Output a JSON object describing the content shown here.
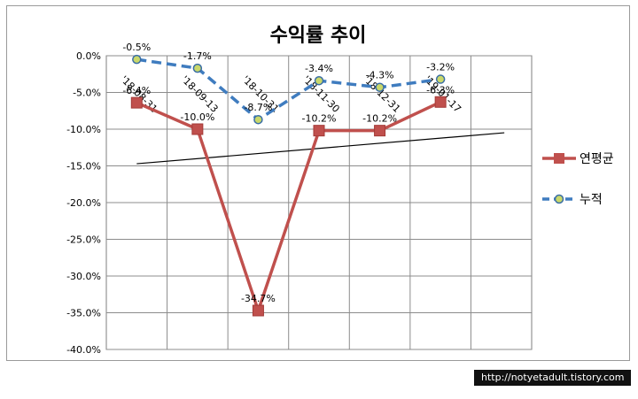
{
  "chart_data": {
    "type": "line",
    "title": "수익률 추이",
    "categories": [
      "'18-08-31",
      "'18-09-13",
      "'18-10-31",
      "'18-11-30",
      "'18-12-31",
      "'19-01-17"
    ],
    "ylim": [
      -40,
      0
    ],
    "yticks": [
      0,
      -5,
      -10,
      -15,
      -20,
      -25,
      -30,
      -35,
      -40
    ],
    "ytick_labels": [
      "0.0%",
      "-5.0%",
      "-10.0%",
      "-15.0%",
      "-20.0%",
      "-25.0%",
      "-30.0%",
      "-35.0%",
      "-40.0%"
    ],
    "grid": true,
    "legend_position": "right",
    "series": [
      {
        "name": "연평균",
        "values": [
          -6.4,
          -10.0,
          -34.7,
          -10.2,
          -10.2,
          -6.3
        ],
        "labels": [
          "-6.4%",
          "-10.0%",
          "-34.7%",
          "-10.2%",
          "-10.2%",
          "-6.3%"
        ],
        "color": "#c0504d",
        "style": "solid",
        "marker": "square"
      },
      {
        "name": "누적",
        "values": [
          -0.5,
          -1.7,
          -8.7,
          -3.4,
          -4.3,
          -3.2
        ],
        "labels": [
          "-0.5%",
          "-1.7%",
          "-8.7%",
          "-3.4%",
          "-4.3%",
          "-3.2%"
        ],
        "color": "#3f7cbf",
        "marker_color": "#c9d86a",
        "style": "dashed",
        "marker": "circle"
      }
    ],
    "trendline": {
      "of_series": "연평균",
      "type": "linear",
      "color": "#000000"
    }
  },
  "watermark": "http://notyetadult.tistory.com"
}
